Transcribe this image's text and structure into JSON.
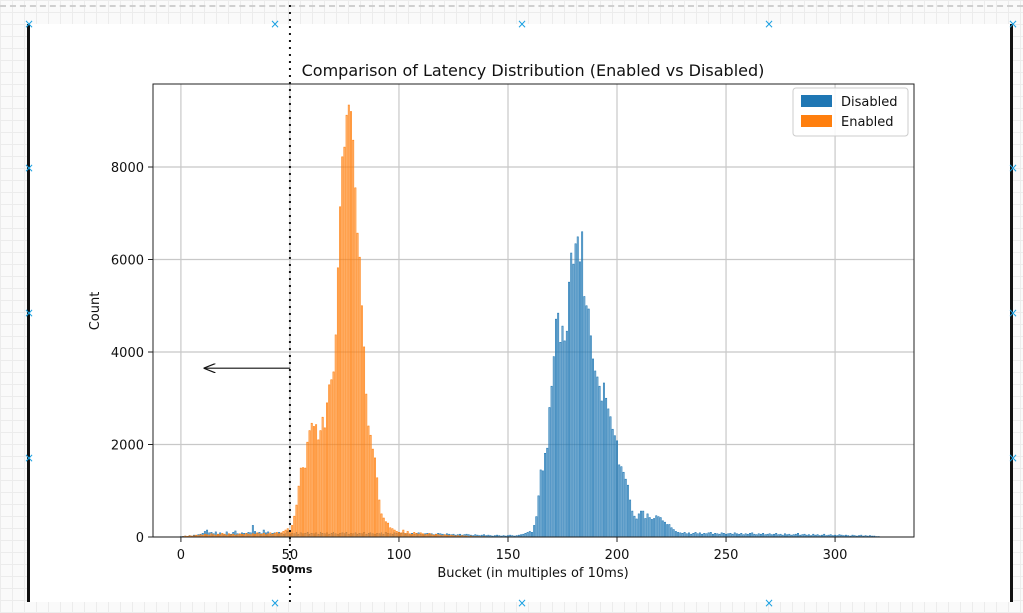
{
  "chart_data": {
    "type": "bar",
    "title": "Comparison of Latency Distribution (Enabled vs Disabled)",
    "xlabel": "Bucket (in multiples of 10ms)",
    "ylabel": "Count",
    "xlim": [
      -12.8,
      336.2
    ],
    "ylim": [
      0,
      9795
    ],
    "xticks": [
      0,
      50,
      100,
      150,
      200,
      250,
      300
    ],
    "yticks": [
      0,
      2000,
      4000,
      6000,
      8000
    ],
    "grid": true,
    "legend_position": "top-right",
    "series": [
      {
        "name": "Disabled",
        "color": "#1f77b4",
        "segments": [
          {
            "start": 0,
            "values": [
              10,
              15,
              20,
              15,
              30,
              20,
              40,
              35,
              50,
              60,
              80,
              120,
              150,
              90,
              100,
              70,
              110,
              60,
              90,
              50,
              60,
              110,
              70,
              60,
              100,
              130,
              70,
              60,
              90,
              80,
              70,
              100,
              90,
              250,
              120,
              80,
              100,
              70,
              150,
              90,
              110,
              60,
              80,
              90,
              70,
              100,
              80,
              60,
              70,
              120
            ]
          },
          {
            "start": 50,
            "values": [
              60,
              80,
              70,
              100,
              60,
              90,
              70,
              80,
              100,
              60,
              80,
              70,
              90,
              60,
              100,
              80,
              70,
              90,
              60,
              80,
              100,
              70,
              60,
              80,
              90,
              70,
              100,
              60,
              80,
              70,
              90,
              60,
              80,
              70,
              100,
              60,
              80,
              90,
              70,
              60,
              80,
              70,
              90,
              60,
              100,
              80,
              70,
              60,
              90,
              80,
              100
            ]
          },
          {
            "start": 101,
            "values": [
              80,
              90,
              60,
              70,
              50,
              80,
              60,
              70,
              90,
              60,
              50,
              70,
              80,
              60,
              70,
              50,
              60,
              80,
              70,
              60,
              50,
              70,
              60,
              50,
              60,
              40,
              50,
              60,
              40,
              50,
              60,
              50,
              40,
              30,
              50,
              40,
              30,
              40,
              50,
              30,
              40,
              30,
              20,
              30,
              40,
              30,
              20,
              30,
              20,
              30,
              40,
              30,
              20,
              30,
              40,
              50,
              60,
              80,
              100,
              120
            ]
          },
          {
            "start": 161,
            "values": [
              100,
              250,
              440,
              890,
              1450,
              1430,
              1810,
              1920,
              2800,
              3260,
              3900,
              4710,
              4840,
              4210,
              4560,
              4240,
              4450,
              5510,
              6140,
              5900,
              6340,
              6490,
              5950,
              6600,
              5200,
              5000,
              4930,
              4350,
              3850,
              3590,
              3460,
              3260,
              2940,
              3330,
              3000,
              2770,
              2600,
              2330,
              2190,
              2080,
              1560,
              1520,
              1400,
              1250,
              1120,
              800,
              560,
              450,
              390,
              500,
              560,
              560,
              400,
              500,
              420,
              380,
              400,
              460,
              440,
              420,
              350,
              320,
              270,
              270,
              200,
              160,
              120,
              100
            ]
          },
          {
            "start": 229,
            "values": [
              90,
              80,
              100,
              70,
              90,
              60,
              80,
              100,
              70,
              90,
              60,
              80,
              70,
              90,
              100,
              60,
              80,
              70,
              60,
              90,
              80,
              60,
              70,
              80,
              60,
              90,
              70,
              60,
              80,
              50,
              70,
              60,
              80,
              90,
              60,
              50,
              70,
              60,
              80,
              50,
              60,
              70,
              50,
              60,
              80,
              50,
              60,
              40,
              70,
              50,
              60,
              40,
              50,
              60,
              80,
              40,
              50,
              60,
              40,
              50,
              30,
              60,
              40,
              50,
              30,
              40,
              60,
              30,
              40,
              50,
              30,
              40,
              30,
              50,
              40,
              30,
              40,
              30,
              20,
              40,
              30,
              20,
              30,
              40,
              20,
              30,
              20,
              30,
              20,
              20,
              10,
              10
            ]
          }
        ]
      },
      {
        "name": "Enabled",
        "color": "#ff7f0e",
        "segments": [
          {
            "start": 0,
            "values": [
              5,
              10,
              20,
              15,
              30,
              20,
              25,
              40,
              30,
              50,
              40,
              60,
              50,
              40,
              70,
              50,
              40,
              60,
              50,
              80,
              60,
              40,
              70,
              50,
              60,
              40,
              50,
              70,
              60,
              50,
              80,
              60,
              50,
              70,
              60,
              90,
              70,
              60,
              80,
              50,
              70,
              90,
              60,
              80,
              100,
              70,
              90,
              120,
              150,
              180
            ]
          },
          {
            "start": 50,
            "values": [
              120,
              250,
              450,
              690,
              1100,
              1490,
              1500,
              1490,
              2050,
              2300,
              2460,
              2390,
              2430,
              2100,
              2300,
              2590,
              2360,
              2900,
              3290,
              3400,
              3570,
              4370,
              5820,
              7140,
              8220,
              8430,
              9120,
              9340,
              9200,
              8580,
              7550,
              6570,
              6050,
              5000,
              4110,
              3090,
              2400,
              2200,
              1900,
              1710,
              1280,
              800,
              500,
              410,
              330,
              300,
              200,
              180,
              150,
              120,
              100
            ]
          },
          {
            "start": 101,
            "values": [
              90,
              150,
              80,
              120,
              70,
              60,
              100,
              80,
              60,
              90,
              70,
              50,
              60,
              80,
              50,
              40,
              60,
              50,
              40,
              30,
              50,
              40,
              30,
              40,
              30,
              20,
              30,
              20,
              30,
              20,
              20,
              10,
              20,
              10,
              10,
              10,
              10,
              5,
              10,
              5
            ]
          }
        ]
      }
    ],
    "annotations": {
      "threshold_x": 50,
      "threshold_label": "500ms",
      "arrow": {
        "from": [
          50,
          3650
        ],
        "to": [
          11,
          3650
        ]
      }
    }
  }
}
